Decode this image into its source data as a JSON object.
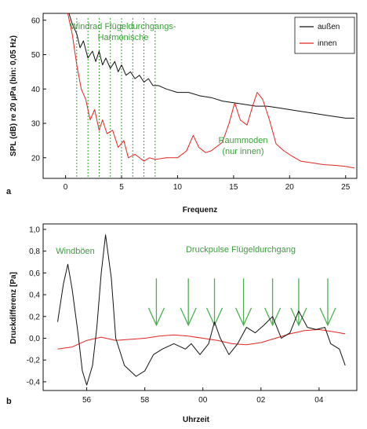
{
  "chart_data": [
    {
      "type": "line",
      "panel_label": "a",
      "xlabel": "Frequenz",
      "ylabel": "SPL (dB) re 20 µPa (bin: 0,05 Hz)",
      "xlim": [
        -2,
        26
      ],
      "ylim": [
        14,
        62
      ],
      "xticks": [
        0,
        5,
        10,
        15,
        20,
        25
      ],
      "yticks": [
        20,
        30,
        40,
        50,
        60
      ],
      "legend": {
        "position": "top-right",
        "entries": [
          "außen",
          "innen"
        ]
      },
      "series": [
        {
          "name": "außen",
          "color": "#111111",
          "points": [
            [
              0.3,
              62
            ],
            [
              0.6,
              59
            ],
            [
              1.0,
              56
            ],
            [
              1.3,
              52
            ],
            [
              1.6,
              54
            ],
            [
              2.0,
              49
            ],
            [
              2.4,
              51
            ],
            [
              2.7,
              48
            ],
            [
              3.0,
              51
            ],
            [
              3.3,
              47
            ],
            [
              3.6,
              49
            ],
            [
              4.0,
              46
            ],
            [
              4.4,
              48
            ],
            [
              4.7,
              45
            ],
            [
              5.0,
              47
            ],
            [
              5.4,
              44
            ],
            [
              5.8,
              45
            ],
            [
              6.2,
              43
            ],
            [
              6.6,
              44
            ],
            [
              7.0,
              42
            ],
            [
              7.4,
              43
            ],
            [
              7.8,
              41
            ],
            [
              8.3,
              41
            ],
            [
              9,
              40
            ],
            [
              10,
              39
            ],
            [
              11,
              39
            ],
            [
              12,
              38
            ],
            [
              13,
              37.5
            ],
            [
              14,
              36.5
            ],
            [
              15,
              36
            ],
            [
              16,
              35.5
            ],
            [
              17,
              35
            ],
            [
              18,
              35
            ],
            [
              19,
              34.5
            ],
            [
              20,
              34
            ],
            [
              21,
              33.5
            ],
            [
              22,
              33
            ],
            [
              23,
              32.5
            ],
            [
              24,
              32
            ],
            [
              25,
              31.5
            ],
            [
              25.8,
              31.5
            ]
          ]
        },
        {
          "name": "innen",
          "color": "#e52520",
          "points": [
            [
              0.2,
              62
            ],
            [
              0.6,
              56
            ],
            [
              1.0,
              47
            ],
            [
              1.4,
              40
            ],
            [
              1.8,
              37
            ],
            [
              2.2,
              31
            ],
            [
              2.6,
              34
            ],
            [
              3.0,
              28
            ],
            [
              3.3,
              31
            ],
            [
              3.7,
              27
            ],
            [
              4.2,
              28
            ],
            [
              4.7,
              23
            ],
            [
              5.2,
              25
            ],
            [
              5.6,
              20
            ],
            [
              6.2,
              21
            ],
            [
              7.0,
              19
            ],
            [
              7.5,
              20
            ],
            [
              8.0,
              19.5
            ],
            [
              9,
              20
            ],
            [
              10,
              20
            ],
            [
              10.8,
              22
            ],
            [
              11.4,
              26.5
            ],
            [
              11.9,
              23
            ],
            [
              12.5,
              21.5
            ],
            [
              13,
              22
            ],
            [
              14,
              24.5
            ],
            [
              14.6,
              30
            ],
            [
              15.1,
              36
            ],
            [
              15.6,
              31
            ],
            [
              16.2,
              29.5
            ],
            [
              16.7,
              35
            ],
            [
              17.1,
              39
            ],
            [
              17.6,
              37
            ],
            [
              18.2,
              31
            ],
            [
              18.8,
              24
            ],
            [
              19.5,
              22
            ],
            [
              20.2,
              20.5
            ],
            [
              21,
              19
            ],
            [
              22,
              18.5
            ],
            [
              23,
              18
            ],
            [
              24,
              17.8
            ],
            [
              25,
              17.5
            ],
            [
              25.8,
              17
            ]
          ]
        }
      ],
      "vlines": [
        1,
        2,
        3,
        4,
        5,
        6,
        7,
        8
      ],
      "annotations": [
        "Windrad Flügeldurchgangs-",
        "Harmonische",
        "Raummoden",
        "(nur innen)"
      ]
    },
    {
      "type": "line",
      "panel_label": "b",
      "xlabel": "Uhrzeit",
      "ylabel": "Druckdifferenz [Pa]",
      "xlim": [
        54.5,
        65.3
      ],
      "ylim": [
        -0.48,
        1.05
      ],
      "xticks": [
        56,
        58,
        60,
        62,
        64
      ],
      "xtick_labels": [
        "56",
        "58",
        "00",
        "02",
        "04"
      ],
      "yticks": [
        -0.4,
        -0.2,
        0.0,
        0.2,
        0.4,
        0.6,
        0.8,
        1.0
      ],
      "ytick_labels": [
        "-0,4",
        "-0,2",
        "0,0",
        "0,2",
        "0,4",
        "0,6",
        "0,8",
        "1,0"
      ],
      "series": [
        {
          "color": "#111111",
          "points": [
            [
              55.0,
              0.15
            ],
            [
              55.2,
              0.5
            ],
            [
              55.35,
              0.68
            ],
            [
              55.5,
              0.45
            ],
            [
              55.7,
              0.05
            ],
            [
              55.85,
              -0.3
            ],
            [
              56.0,
              -0.43
            ],
            [
              56.2,
              -0.25
            ],
            [
              56.35,
              0.1
            ],
            [
              56.5,
              0.6
            ],
            [
              56.65,
              0.95
            ],
            [
              56.85,
              0.55
            ],
            [
              57.0,
              0.0
            ],
            [
              57.3,
              -0.25
            ],
            [
              57.7,
              -0.35
            ],
            [
              58.0,
              -0.3
            ],
            [
              58.3,
              -0.15
            ],
            [
              58.6,
              -0.1
            ],
            [
              59.0,
              -0.05
            ],
            [
              59.4,
              -0.1
            ],
            [
              59.6,
              -0.05
            ],
            [
              59.9,
              -0.15
            ],
            [
              60.2,
              -0.05
            ],
            [
              60.4,
              0.15
            ],
            [
              60.6,
              0.0
            ],
            [
              60.9,
              -0.15
            ],
            [
              61.2,
              -0.05
            ],
            [
              61.5,
              0.1
            ],
            [
              61.8,
              0.05
            ],
            [
              62.1,
              0.12
            ],
            [
              62.4,
              0.2
            ],
            [
              62.7,
              0.0
            ],
            [
              63.0,
              0.05
            ],
            [
              63.3,
              0.25
            ],
            [
              63.6,
              0.1
            ],
            [
              63.9,
              0.08
            ],
            [
              64.2,
              0.1
            ],
            [
              64.4,
              -0.05
            ],
            [
              64.7,
              -0.1
            ],
            [
              64.9,
              -0.25
            ]
          ]
        },
        {
          "color": "#e52520",
          "points": [
            [
              55.0,
              -0.1
            ],
            [
              55.5,
              -0.08
            ],
            [
              56.0,
              -0.02
            ],
            [
              56.5,
              0.01
            ],
            [
              57.0,
              -0.02
            ],
            [
              57.5,
              -0.01
            ],
            [
              58.0,
              0.0
            ],
            [
              58.5,
              0.02
            ],
            [
              59.0,
              0.03
            ],
            [
              59.5,
              0.02
            ],
            [
              60.0,
              0.0
            ],
            [
              60.5,
              -0.02
            ],
            [
              61.0,
              -0.05
            ],
            [
              61.5,
              -0.06
            ],
            [
              62.0,
              -0.04
            ],
            [
              62.5,
              0.0
            ],
            [
              63.0,
              0.04
            ],
            [
              63.5,
              0.07
            ],
            [
              64.0,
              0.08
            ],
            [
              64.5,
              0.06
            ],
            [
              64.9,
              0.04
            ]
          ]
        }
      ],
      "arrows_x": [
        58.4,
        59.5,
        60.4,
        61.4,
        62.4,
        63.3,
        64.3
      ],
      "annotations": [
        "Windböen",
        "Druckpulse Flügeldurchgang"
      ]
    }
  ]
}
